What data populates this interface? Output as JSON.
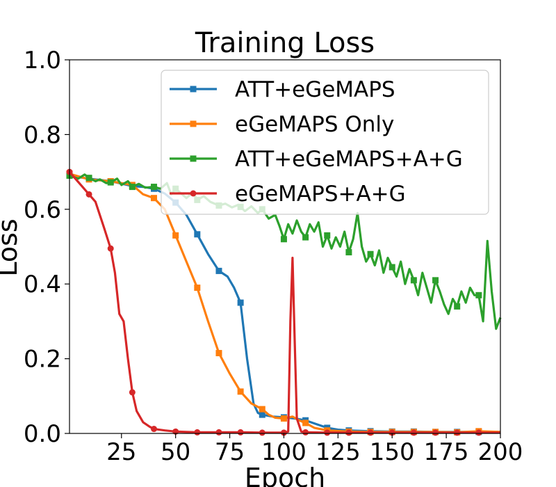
{
  "chart_data": {
    "type": "line",
    "title": "Training Loss",
    "xlabel": "Epoch",
    "ylabel": "Loss",
    "xlim": [
      1,
      200
    ],
    "ylim": [
      0,
      1.0
    ],
    "xticks": [
      25,
      50,
      75,
      100,
      125,
      150,
      175,
      200
    ],
    "xtick_labels": [
      "25",
      "50",
      "75",
      "100",
      "125",
      "150",
      "175",
      "200"
    ],
    "yticks": [
      0,
      0.2,
      0.4,
      0.6,
      0.8,
      1.0
    ],
    "ytick_labels": [
      "0.0",
      "0.2",
      "0.4",
      "0.6",
      "0.8",
      "1.0"
    ],
    "grid": false,
    "legend_position": "top-right",
    "series": [
      {
        "name": "ATT+eGeMAPS",
        "color": "#1f77b4",
        "marker": "square",
        "markevery": 10,
        "points": [
          [
            1,
            0.69
          ],
          [
            10,
            0.682
          ],
          [
            20,
            0.675
          ],
          [
            30,
            0.662
          ],
          [
            35,
            0.66
          ],
          [
            40,
            0.655
          ],
          [
            45,
            0.642
          ],
          [
            50,
            0.618
          ],
          [
            55,
            0.585
          ],
          [
            60,
            0.533
          ],
          [
            65,
            0.48
          ],
          [
            70,
            0.435
          ],
          [
            74,
            0.42
          ],
          [
            77,
            0.39
          ],
          [
            80,
            0.35
          ],
          [
            83,
            0.2
          ],
          [
            86,
            0.08
          ],
          [
            88,
            0.055
          ],
          [
            90,
            0.05
          ],
          [
            95,
            0.045
          ],
          [
            100,
            0.043
          ],
          [
            105,
            0.04
          ],
          [
            110,
            0.035
          ],
          [
            115,
            0.025
          ],
          [
            120,
            0.015
          ],
          [
            125,
            0.01
          ],
          [
            130,
            0.008
          ],
          [
            140,
            0.006
          ],
          [
            150,
            0.005
          ],
          [
            160,
            0.005
          ],
          [
            170,
            0.004
          ],
          [
            180,
            0.004
          ],
          [
            190,
            0.004
          ],
          [
            200,
            0.004
          ]
        ]
      },
      {
        "name": "eGeMAPS Only",
        "color": "#ff7f0e",
        "marker": "square",
        "markevery": 10,
        "points": [
          [
            1,
            0.695
          ],
          [
            10,
            0.68
          ],
          [
            20,
            0.675
          ],
          [
            30,
            0.665
          ],
          [
            35,
            0.64
          ],
          [
            40,
            0.63
          ],
          [
            45,
            0.6
          ],
          [
            50,
            0.53
          ],
          [
            55,
            0.46
          ],
          [
            60,
            0.39
          ],
          [
            65,
            0.3
          ],
          [
            70,
            0.215
          ],
          [
            75,
            0.16
          ],
          [
            80,
            0.112
          ],
          [
            85,
            0.08
          ],
          [
            90,
            0.065
          ],
          [
            93,
            0.05
          ],
          [
            96,
            0.042
          ],
          [
            100,
            0.04
          ],
          [
            104,
            0.045
          ],
          [
            107,
            0.035
          ],
          [
            110,
            0.028
          ],
          [
            114,
            0.015
          ],
          [
            120,
            0.008
          ],
          [
            130,
            0.005
          ],
          [
            140,
            0.004
          ],
          [
            150,
            0.004
          ],
          [
            160,
            0.004
          ],
          [
            170,
            0.004
          ],
          [
            180,
            0.003
          ],
          [
            190,
            0.006
          ],
          [
            200,
            0.004
          ]
        ]
      },
      {
        "name": "ATT+eGeMAPS+A+G",
        "color": "#2ca02c",
        "marker": "square",
        "markevery": 10,
        "points": [
          [
            1,
            0.69
          ],
          [
            5,
            0.682
          ],
          [
            8,
            0.693
          ],
          [
            10,
            0.684
          ],
          [
            13,
            0.675
          ],
          [
            15,
            0.68
          ],
          [
            18,
            0.67
          ],
          [
            20,
            0.672
          ],
          [
            23,
            0.682
          ],
          [
            25,
            0.665
          ],
          [
            28,
            0.675
          ],
          [
            30,
            0.66
          ],
          [
            33,
            0.668
          ],
          [
            36,
            0.658
          ],
          [
            40,
            0.66
          ],
          [
            43,
            0.655
          ],
          [
            46,
            0.67
          ],
          [
            48,
            0.64
          ],
          [
            50,
            0.655
          ],
          [
            53,
            0.64
          ],
          [
            55,
            0.63
          ],
          [
            58,
            0.645
          ],
          [
            60,
            0.625
          ],
          [
            63,
            0.635
          ],
          [
            66,
            0.62
          ],
          [
            70,
            0.61
          ],
          [
            73,
            0.615
          ],
          [
            76,
            0.605
          ],
          [
            79,
            0.612
          ],
          [
            82,
            0.595
          ],
          [
            85,
            0.608
          ],
          [
            88,
            0.59
          ],
          [
            90,
            0.6
          ],
          [
            93,
            0.575
          ],
          [
            96,
            0.585
          ],
          [
            98,
            0.555
          ],
          [
            100,
            0.52
          ],
          [
            102,
            0.56
          ],
          [
            104,
            0.535
          ],
          [
            106,
            0.57
          ],
          [
            108,
            0.54
          ],
          [
            110,
            0.525
          ],
          [
            112,
            0.56
          ],
          [
            114,
            0.54
          ],
          [
            116,
            0.565
          ],
          [
            118,
            0.5
          ],
          [
            120,
            0.53
          ],
          [
            122,
            0.495
          ],
          [
            124,
            0.525
          ],
          [
            126,
            0.5
          ],
          [
            128,
            0.54
          ],
          [
            130,
            0.485
          ],
          [
            132,
            0.52
          ],
          [
            134,
            0.59
          ],
          [
            136,
            0.5
          ],
          [
            138,
            0.46
          ],
          [
            140,
            0.48
          ],
          [
            142,
            0.45
          ],
          [
            144,
            0.49
          ],
          [
            146,
            0.43
          ],
          [
            148,
            0.47
          ],
          [
            150,
            0.445
          ],
          [
            152,
            0.42
          ],
          [
            154,
            0.46
          ],
          [
            156,
            0.4
          ],
          [
            158,
            0.44
          ],
          [
            160,
            0.41
          ],
          [
            162,
            0.37
          ],
          [
            164,
            0.43
          ],
          [
            166,
            0.39
          ],
          [
            168,
            0.35
          ],
          [
            170,
            0.41
          ],
          [
            172,
            0.38
          ],
          [
            174,
            0.345
          ],
          [
            176,
            0.32
          ],
          [
            178,
            0.36
          ],
          [
            180,
            0.34
          ],
          [
            182,
            0.38
          ],
          [
            184,
            0.35
          ],
          [
            186,
            0.39
          ],
          [
            188,
            0.37
          ],
          [
            190,
            0.37
          ],
          [
            192,
            0.3
          ],
          [
            194,
            0.515
          ],
          [
            196,
            0.38
          ],
          [
            198,
            0.28
          ],
          [
            200,
            0.31
          ]
        ]
      },
      {
        "name": "eGeMAPS+A+G",
        "color": "#d62728",
        "marker": "circle",
        "markevery": 10,
        "points": [
          [
            1,
            0.7
          ],
          [
            4,
            0.68
          ],
          [
            7,
            0.66
          ],
          [
            10,
            0.64
          ],
          [
            13,
            0.62
          ],
          [
            15,
            0.585
          ],
          [
            17,
            0.55
          ],
          [
            20,
            0.495
          ],
          [
            22,
            0.43
          ],
          [
            24,
            0.32
          ],
          [
            26,
            0.3
          ],
          [
            28,
            0.2
          ],
          [
            30,
            0.11
          ],
          [
            32,
            0.06
          ],
          [
            35,
            0.03
          ],
          [
            38,
            0.018
          ],
          [
            40,
            0.012
          ],
          [
            45,
            0.008
          ],
          [
            50,
            0.005
          ],
          [
            60,
            0.003
          ],
          [
            70,
            0.003
          ],
          [
            80,
            0.003
          ],
          [
            90,
            0.002
          ],
          [
            100,
            0.002
          ],
          [
            102,
            0.005
          ],
          [
            103,
            0.3
          ],
          [
            104,
            0.47
          ],
          [
            105,
            0.25
          ],
          [
            106,
            0.04
          ],
          [
            108,
            0.005
          ],
          [
            110,
            0.003
          ],
          [
            120,
            0.002
          ],
          [
            130,
            0.002
          ],
          [
            140,
            0.002
          ],
          [
            150,
            0.002
          ],
          [
            160,
            0.002
          ],
          [
            170,
            0.002
          ],
          [
            180,
            0.002
          ],
          [
            190,
            0.002
          ],
          [
            200,
            0.002
          ]
        ]
      }
    ]
  }
}
